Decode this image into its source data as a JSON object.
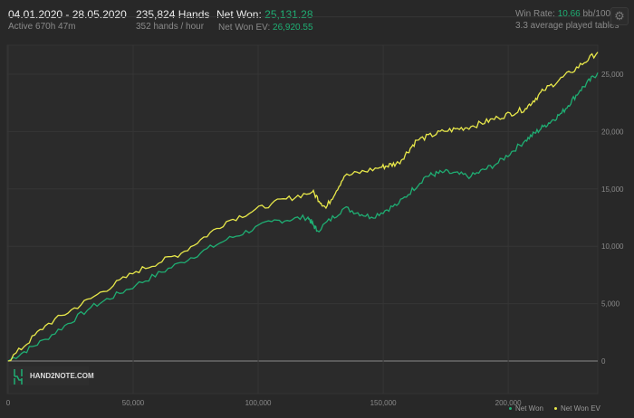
{
  "header": {
    "date_range": "04.01.2020 - 28.05.2020",
    "active": "Active 670h 47m",
    "hands": "235,824 Hands",
    "hands_per_hour": "352 hands / hour",
    "net_won_label": "Net Won: ",
    "net_won_value": "25,131.28",
    "net_won_ev_label": "Net Won  EV: ",
    "net_won_ev_value": "26,920.55",
    "win_rate_label": "Win Rate: ",
    "win_rate_value": "10.66",
    "win_rate_unit": " bb/100",
    "avg_tables": "3.3 average played tables",
    "settings_icon": "gear-icon"
  },
  "logo_text": "HAND2NOTE.COM",
  "colors": {
    "net_won": "#1fae73",
    "net_won_ev": "#e8e84a",
    "positive": "#1fae73"
  },
  "chart_data": {
    "type": "line",
    "xlim": [
      0,
      235824
    ],
    "ylim": [
      -2500,
      30000
    ],
    "x_ticks": [
      "0",
      "50,000",
      "100,000",
      "150,000",
      "200,000"
    ],
    "x_tick_values": [
      0,
      50000,
      100000,
      150000,
      200000
    ],
    "y_ticks": [
      "0",
      "5,000",
      "10,000",
      "15,000",
      "20,000",
      "25,000"
    ],
    "y_tick_values": [
      0,
      5000,
      10000,
      15000,
      20000,
      25000
    ],
    "grid": true,
    "legend": "bottom-right",
    "series": [
      {
        "name": "Net Won",
        "color": "#1fae73",
        "points": [
          [
            0,
            0
          ],
          [
            14855,
            1890
          ],
          [
            33000,
            4650
          ],
          [
            51100,
            6620
          ],
          [
            69200,
            8600
          ],
          [
            87300,
            10570
          ],
          [
            105400,
            12150
          ],
          [
            119900,
            12540
          ],
          [
            123600,
            11360
          ],
          [
            134400,
            13330
          ],
          [
            145300,
            12540
          ],
          [
            156200,
            13720
          ],
          [
            167000,
            16090
          ],
          [
            174300,
            16480
          ],
          [
            185100,
            16090
          ],
          [
            196000,
            17270
          ],
          [
            206900,
            19240
          ],
          [
            214100,
            20430
          ],
          [
            221400,
            21610
          ],
          [
            228700,
            23580
          ],
          [
            235824,
            25131
          ]
        ]
      },
      {
        "name": "Net Won  EV",
        "color": "#e8e84a",
        "points": [
          [
            0,
            0
          ],
          [
            14855,
            3075
          ],
          [
            33000,
            5440
          ],
          [
            51100,
            7800
          ],
          [
            69200,
            9385
          ],
          [
            87300,
            12150
          ],
          [
            105400,
            13720
          ],
          [
            121700,
            14750
          ],
          [
            127100,
            13330
          ],
          [
            134400,
            16090
          ],
          [
            148900,
            16880
          ],
          [
            156200,
            17270
          ],
          [
            163400,
            19240
          ],
          [
            174300,
            20030
          ],
          [
            185100,
            20430
          ],
          [
            196000,
            21210
          ],
          [
            206900,
            22000
          ],
          [
            214100,
            23580
          ],
          [
            225000,
            25160
          ],
          [
            235824,
            26920
          ]
        ]
      }
    ]
  }
}
